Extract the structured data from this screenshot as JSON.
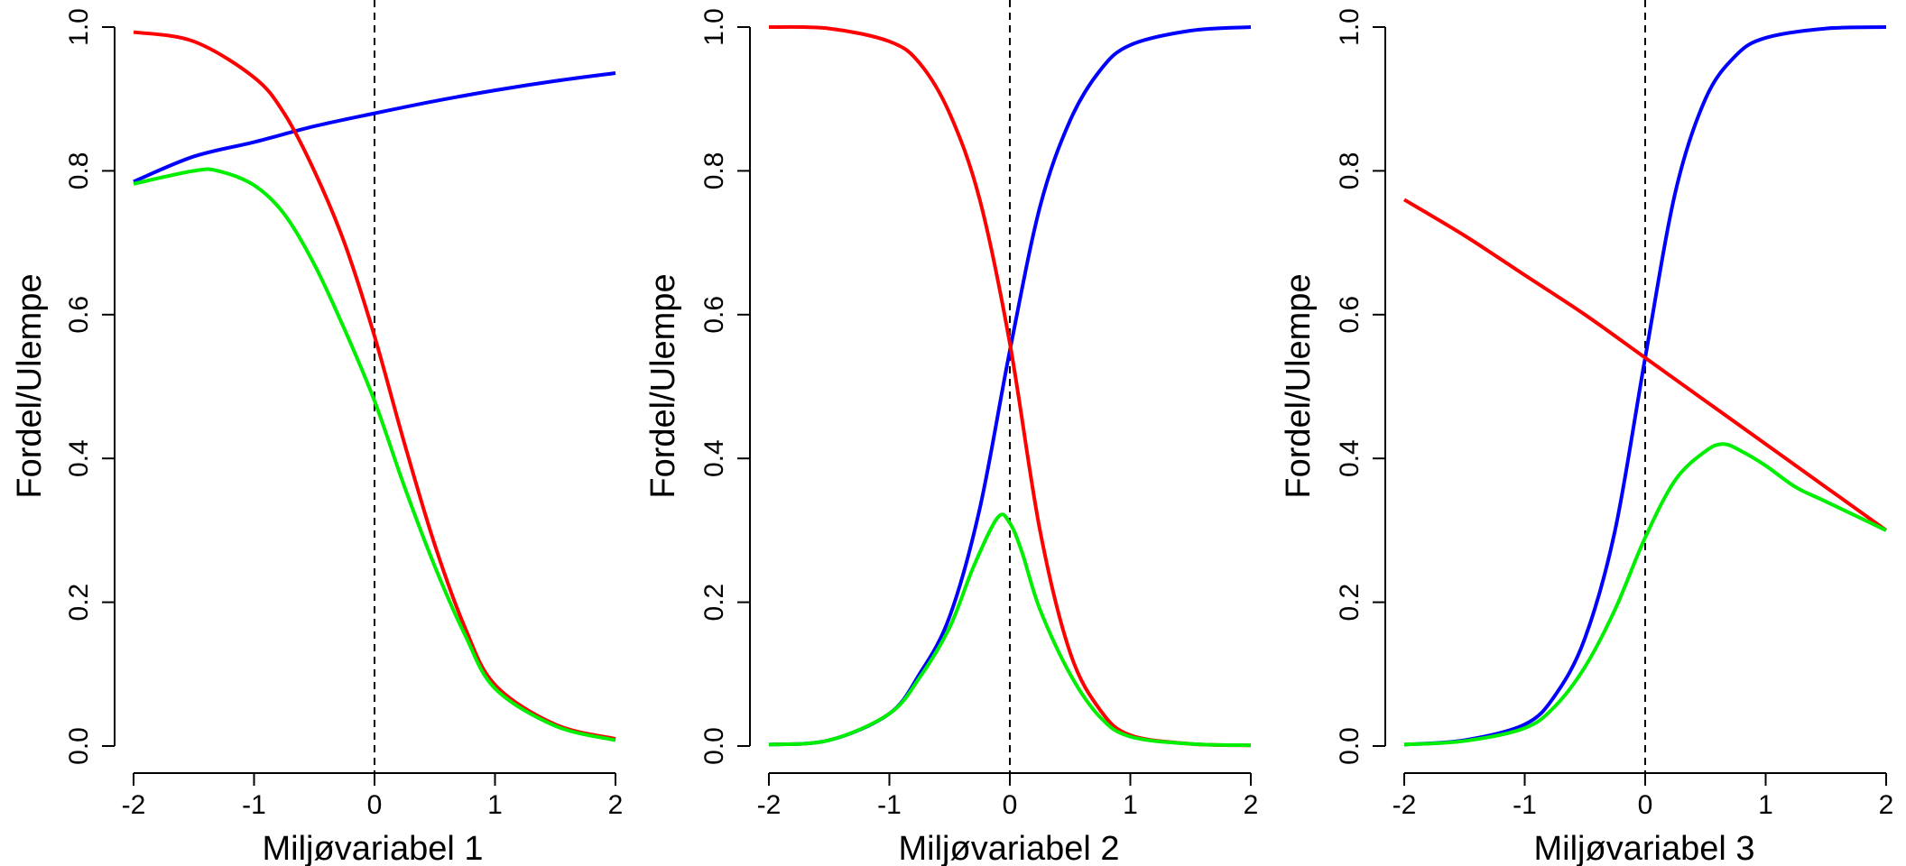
{
  "chart_data": [
    {
      "type": "line",
      "xlabel": "Miljøvariabel 1",
      "ylabel": "Fordel/Ulempe",
      "xlim": [
        -2,
        2
      ],
      "ylim": [
        0,
        1
      ],
      "xticks": [
        "-2",
        "-1",
        "0",
        "1",
        "2"
      ],
      "yticks": [
        "0.0",
        "0.2",
        "0.4",
        "0.6",
        "0.8",
        "1.0"
      ],
      "vline_x": 0,
      "grid": false,
      "series": [
        {
          "color": "#0000ff",
          "x": [
            -2,
            -1.5,
            -1,
            -0.5,
            0,
            0.5,
            1,
            1.5,
            2
          ],
          "y": [
            0.785,
            0.82,
            0.84,
            0.862,
            0.88,
            0.897,
            0.912,
            0.925,
            0.936
          ]
        },
        {
          "color": "#ff0000",
          "x": [
            -2,
            -1.5,
            -1,
            -0.75,
            -0.5,
            -0.25,
            0,
            0.25,
            0.5,
            0.75,
            1,
            1.5,
            2
          ],
          "y": [
            0.993,
            0.98,
            0.93,
            0.88,
            0.8,
            0.7,
            0.57,
            0.42,
            0.28,
            0.165,
            0.085,
            0.03,
            0.01
          ]
        },
        {
          "color": "#00ee00",
          "x": [
            -2,
            -1.5,
            -1.3,
            -1,
            -0.75,
            -0.5,
            -0.25,
            0,
            0.25,
            0.5,
            0.75,
            1,
            1.5,
            2
          ],
          "y": [
            0.782,
            0.8,
            0.8,
            0.78,
            0.74,
            0.67,
            0.58,
            0.48,
            0.36,
            0.25,
            0.155,
            0.08,
            0.028,
            0.008
          ]
        }
      ]
    },
    {
      "type": "line",
      "xlabel": "Miljøvariabel 2",
      "ylabel": "Fordel/Ulempe",
      "xlim": [
        -2,
        2
      ],
      "ylim": [
        0,
        1
      ],
      "xticks": [
        "-2",
        "-1",
        "0",
        "1",
        "2"
      ],
      "yticks": [
        "0.0",
        "0.2",
        "0.4",
        "0.6",
        "0.8",
        "1.0"
      ],
      "vline_x": 0,
      "grid": false,
      "series": [
        {
          "color": "#0000ff",
          "x": [
            -2,
            -1.5,
            -1,
            -0.75,
            -0.5,
            -0.25,
            0,
            0.25,
            0.5,
            0.75,
            1,
            1.5,
            2
          ],
          "y": [
            0.002,
            0.008,
            0.045,
            0.1,
            0.18,
            0.33,
            0.55,
            0.75,
            0.87,
            0.94,
            0.975,
            0.995,
            1.0
          ]
        },
        {
          "color": "#ff0000",
          "x": [
            -2,
            -1.5,
            -1,
            -0.75,
            -0.5,
            -0.25,
            0,
            0.25,
            0.5,
            0.75,
            1,
            1.5,
            2
          ],
          "y": [
            1.0,
            0.998,
            0.98,
            0.95,
            0.88,
            0.76,
            0.56,
            0.3,
            0.13,
            0.05,
            0.015,
            0.003,
            0.001
          ]
        },
        {
          "color": "#00ee00",
          "x": [
            -2,
            -1.5,
            -1,
            -0.75,
            -0.5,
            -0.3,
            -0.1,
            0,
            0.1,
            0.25,
            0.5,
            0.75,
            1,
            1.5,
            2
          ],
          "y": [
            0.002,
            0.008,
            0.045,
            0.095,
            0.165,
            0.25,
            0.318,
            0.31,
            0.27,
            0.19,
            0.1,
            0.04,
            0.013,
            0.003,
            0.001
          ]
        }
      ]
    },
    {
      "type": "line",
      "xlabel": "Miljøvariabel 3",
      "ylabel": "Fordel/Ulempe",
      "xlim": [
        -2,
        2
      ],
      "ylim": [
        0,
        1
      ],
      "xticks": [
        "-2",
        "-1",
        "0",
        "1",
        "2"
      ],
      "yticks": [
        "0.0",
        "0.2",
        "0.4",
        "0.6",
        "0.8",
        "1.0"
      ],
      "vline_x": 0,
      "grid": false,
      "series": [
        {
          "color": "#0000ff",
          "x": [
            -2,
            -1.5,
            -1,
            -0.75,
            -0.5,
            -0.25,
            0,
            0.25,
            0.5,
            0.75,
            1,
            1.5,
            2
          ],
          "y": [
            0.002,
            0.008,
            0.03,
            0.07,
            0.15,
            0.3,
            0.54,
            0.77,
            0.9,
            0.96,
            0.985,
            0.998,
            1.0
          ]
        },
        {
          "color": "#ff0000",
          "x": [
            -2,
            -1.5,
            -1,
            -0.5,
            0,
            0.5,
            1,
            1.5,
            2
          ],
          "y": [
            0.76,
            0.71,
            0.655,
            0.6,
            0.54,
            0.48,
            0.42,
            0.36,
            0.3
          ]
        },
        {
          "color": "#00ee00",
          "x": [
            -2,
            -1.5,
            -1,
            -0.75,
            -0.5,
            -0.25,
            0,
            0.25,
            0.5,
            0.65,
            0.8,
            1,
            1.25,
            1.5,
            2
          ],
          "y": [
            0.002,
            0.007,
            0.025,
            0.055,
            0.11,
            0.19,
            0.29,
            0.37,
            0.41,
            0.42,
            0.41,
            0.39,
            0.36,
            0.34,
            0.3
          ]
        }
      ]
    }
  ]
}
